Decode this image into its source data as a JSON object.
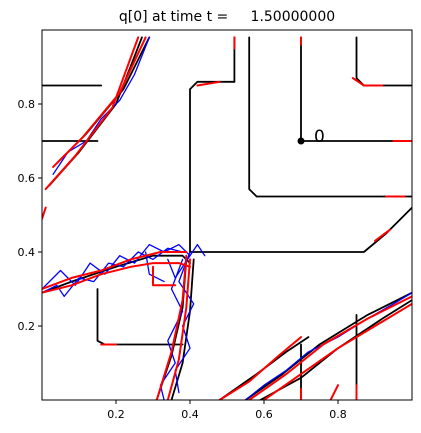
{
  "chart_data": {
    "type": "line",
    "title": "q[0] at time t =     1.50000000",
    "xlabel": "",
    "ylabel": "",
    "xlim": [
      0.0,
      1.0
    ],
    "ylim": [
      0.0,
      1.0
    ],
    "x_ticks": [
      0.2,
      0.4,
      0.6,
      0.8
    ],
    "y_ticks": [
      0.2,
      0.4,
      0.6,
      0.8
    ],
    "x_tick_labels": [
      "0.2",
      "0.4",
      "0.6",
      "0.8"
    ],
    "y_tick_labels": [
      "0.2",
      "0.4",
      "0.6",
      "0.8"
    ],
    "grid": false,
    "legend": "none",
    "colors": {
      "black": "#000000",
      "blue": "#0000ff",
      "red": "#ff0000"
    },
    "annotation": {
      "text": "0",
      "point": [
        0.7,
        0.7
      ]
    },
    "series": [
      {
        "color": "black",
        "lines": [
          [
            [
              0.0,
              0.85
            ],
            [
              0.16,
              0.85
            ]
          ],
          [
            [
              0.0,
              0.7
            ],
            [
              0.15,
              0.7
            ]
          ],
          [
            [
              0.7,
              0.98
            ],
            [
              0.7,
              0.7
            ],
            [
              1.0,
              0.7
            ]
          ],
          [
            [
              0.56,
              0.98
            ],
            [
              0.56,
              0.57
            ],
            [
              0.58,
              0.55
            ],
            [
              1.0,
              0.55
            ]
          ],
          [
            [
              0.85,
              0.98
            ],
            [
              0.85,
              0.87
            ],
            [
              0.87,
              0.85
            ],
            [
              1.0,
              0.85
            ]
          ],
          [
            [
              1.0,
              0.98
            ]
          ],
          [
            [
              0.4,
              0.4
            ],
            [
              0.4,
              0.84
            ],
            [
              0.42,
              0.86
            ],
            [
              0.52,
              0.86
            ]
          ],
          [
            [
              0.52,
              0.86
            ],
            [
              0.52,
              0.98
            ]
          ],
          [
            [
              0.4,
              0.4
            ],
            [
              0.87,
              0.4
            ],
            [
              0.93,
              0.45
            ],
            [
              1.0,
              0.52
            ]
          ],
          [
            [
              0.15,
              0.3
            ],
            [
              0.15,
              0.16
            ],
            [
              0.17,
              0.15
            ],
            [
              0.38,
              0.15
            ]
          ],
          [
            [
              0.0,
              0.29
            ],
            [
              0.08,
              0.32
            ],
            [
              0.2,
              0.36
            ],
            [
              0.3,
              0.39
            ],
            [
              0.38,
              0.39
            ],
            [
              0.4,
              0.37
            ]
          ],
          [
            [
              0.04,
              0.64
            ],
            [
              0.12,
              0.72
            ],
            [
              0.22,
              0.84
            ],
            [
              0.29,
              0.98
            ]
          ],
          [
            [
              0.02,
              0.58
            ],
            [
              0.1,
              0.67
            ],
            [
              0.2,
              0.8
            ],
            [
              0.27,
              0.98
            ]
          ],
          [
            [
              0.39,
              0.38
            ],
            [
              0.38,
              0.25
            ],
            [
              0.35,
              0.12
            ],
            [
              0.31,
              0.0
            ]
          ],
          [
            [
              0.41,
              0.38
            ],
            [
              0.4,
              0.24
            ],
            [
              0.38,
              0.1
            ],
            [
              0.35,
              0.0
            ]
          ],
          [
            [
              0.55,
              0.0
            ],
            [
              0.65,
              0.07
            ],
            [
              0.75,
              0.15
            ],
            [
              0.88,
              0.23
            ],
            [
              1.0,
              0.29
            ]
          ],
          [
            [
              0.59,
              0.0
            ],
            [
              0.7,
              0.06
            ],
            [
              0.8,
              0.14
            ],
            [
              0.92,
              0.22
            ],
            [
              1.0,
              0.27
            ]
          ],
          [
            [
              0.48,
              0.0
            ],
            [
              0.58,
              0.07
            ],
            [
              0.66,
              0.13
            ],
            [
              0.72,
              0.17
            ]
          ],
          [
            [
              0.7,
              0.15
            ],
            [
              0.7,
              0.0
            ]
          ],
          [
            [
              0.85,
              0.23
            ],
            [
              0.85,
              0.0
            ]
          ]
        ]
      },
      {
        "color": "blue",
        "lines": [
          [
            [
              0.0,
              0.29
            ],
            [
              0.04,
              0.31
            ],
            [
              0.06,
              0.28
            ],
            [
              0.1,
              0.33
            ],
            [
              0.14,
              0.32
            ],
            [
              0.18,
              0.37
            ],
            [
              0.22,
              0.36
            ],
            [
              0.26,
              0.4
            ],
            [
              0.3,
              0.38
            ],
            [
              0.34,
              0.41
            ],
            [
              0.38,
              0.4
            ]
          ],
          [
            [
              0.0,
              0.3
            ],
            [
              0.05,
              0.35
            ],
            [
              0.09,
              0.31
            ],
            [
              0.13,
              0.37
            ],
            [
              0.17,
              0.34
            ],
            [
              0.21,
              0.39
            ],
            [
              0.25,
              0.37
            ],
            [
              0.29,
              0.42
            ],
            [
              0.33,
              0.4
            ],
            [
              0.37,
              0.42
            ],
            [
              0.4,
              0.39
            ]
          ],
          [
            [
              0.4,
              0.4
            ],
            [
              0.37,
              0.32
            ],
            [
              0.41,
              0.26
            ],
            [
              0.38,
              0.2
            ],
            [
              0.4,
              0.14
            ],
            [
              0.36,
              0.08
            ],
            [
              0.37,
              0.02
            ]
          ],
          [
            [
              0.38,
              0.38
            ],
            [
              0.35,
              0.3
            ],
            [
              0.38,
              0.24
            ],
            [
              0.34,
              0.16
            ],
            [
              0.36,
              0.1
            ],
            [
              0.32,
              0.04
            ],
            [
              0.33,
              0.0
            ]
          ],
          [
            [
              0.03,
              0.61
            ],
            [
              0.07,
              0.67
            ],
            [
              0.12,
              0.7
            ],
            [
              0.16,
              0.76
            ],
            [
              0.21,
              0.81
            ],
            [
              0.25,
              0.88
            ],
            [
              0.29,
              0.98
            ]
          ],
          [
            [
              0.55,
              0.0
            ],
            [
              0.6,
              0.04
            ],
            [
              0.66,
              0.08
            ],
            [
              0.72,
              0.13
            ],
            [
              0.8,
              0.17
            ],
            [
              0.88,
              0.22
            ],
            [
              0.95,
              0.26
            ],
            [
              1.0,
              0.29
            ]
          ],
          [
            [
              0.28,
              0.4
            ],
            [
              0.29,
              0.34
            ],
            [
              0.33,
              0.32
            ]
          ],
          [
            [
              0.34,
              0.38
            ],
            [
              0.36,
              0.33
            ],
            [
              0.42,
              0.42
            ],
            [
              0.44,
              0.39
            ]
          ]
        ]
      },
      {
        "color": "red",
        "lines": [
          [
            [
              0.0,
              0.3
            ],
            [
              0.08,
              0.33
            ],
            [
              0.16,
              0.35
            ],
            [
              0.24,
              0.38
            ],
            [
              0.32,
              0.4
            ],
            [
              0.39,
              0.4
            ]
          ],
          [
            [
              0.0,
              0.29
            ],
            [
              0.08,
              0.31
            ],
            [
              0.16,
              0.34
            ],
            [
              0.24,
              0.36
            ],
            [
              0.3,
              0.37
            ],
            [
              0.37,
              0.37
            ],
            [
              0.4,
              0.36
            ]
          ],
          [
            [
              0.39,
              0.39
            ],
            [
              0.38,
              0.27
            ],
            [
              0.35,
              0.13
            ],
            [
              0.31,
              0.0
            ]
          ],
          [
            [
              0.4,
              0.38
            ],
            [
              0.39,
              0.25
            ],
            [
              0.37,
              0.11
            ],
            [
              0.34,
              0.0
            ]
          ],
          [
            [
              0.03,
              0.63
            ],
            [
              0.11,
              0.71
            ],
            [
              0.21,
              0.83
            ],
            [
              0.28,
              0.98
            ]
          ],
          [
            [
              0.01,
              0.57
            ],
            [
              0.09,
              0.66
            ],
            [
              0.19,
              0.79
            ],
            [
              0.26,
              0.98
            ]
          ],
          [
            [
              0.56,
              0.0
            ],
            [
              0.66,
              0.07
            ],
            [
              0.76,
              0.15
            ],
            [
              0.88,
              0.22
            ],
            [
              1.0,
              0.28
            ]
          ],
          [
            [
              0.6,
              0.0
            ],
            [
              0.7,
              0.07
            ],
            [
              0.8,
              0.14
            ],
            [
              0.9,
              0.2
            ],
            [
              1.0,
              0.26
            ]
          ],
          [
            [
              0.48,
              0.0
            ],
            [
              0.56,
              0.05
            ],
            [
              0.64,
              0.12
            ],
            [
              0.7,
              0.17
            ]
          ],
          [
            [
              0.3,
              0.36
            ],
            [
              0.3,
              0.31
            ],
            [
              0.33,
              0.31
            ],
            [
              0.36,
              0.31
            ]
          ],
          [
            [
              0.52,
              0.98
            ],
            [
              0.52,
              0.95
            ]
          ],
          [
            [
              0.7,
              0.98
            ],
            [
              0.7,
              0.96
            ]
          ],
          [
            [
              0.84,
              0.87
            ],
            [
              0.87,
              0.85
            ],
            [
              0.92,
              0.85
            ]
          ],
          [
            [
              0.42,
              0.85
            ],
            [
              0.48,
              0.86
            ]
          ],
          [
            [
              0.16,
              0.15
            ],
            [
              0.2,
              0.15
            ]
          ],
          [
            [
              0.95,
              0.7
            ],
            [
              1.0,
              0.7
            ]
          ],
          [
            [
              0.93,
              0.55
            ],
            [
              0.98,
              0.55
            ]
          ],
          [
            [
              0.9,
              0.43
            ],
            [
              0.94,
              0.46
            ]
          ],
          [
            [
              0.0,
              0.49
            ],
            [
              0.01,
              0.52
            ]
          ],
          [
            [
              0.78,
              0.0
            ],
            [
              0.8,
              0.04
            ]
          ],
          [
            [
              0.85,
              0.0
            ],
            [
              0.85,
              0.04
            ]
          ],
          [
            [
              0.7,
              0.0
            ],
            [
              0.7,
              0.03
            ]
          ]
        ]
      }
    ]
  }
}
